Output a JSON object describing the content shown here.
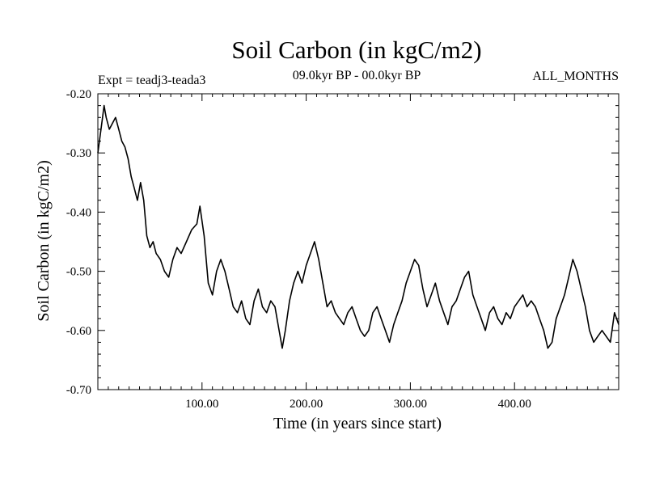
{
  "chart_data": {
    "type": "line",
    "title": "Soil Carbon (in kgC/m2)",
    "subtitle": "09.0kyr BP - 00.0kyr BP",
    "expt_label": "Expt = teadj3-teada3",
    "months_label": "ALL_MONTHS",
    "xlabel": "Time (in years since start)",
    "ylabel": "Soil Carbon (in kgC/m2)",
    "xlim": [
      0,
      500
    ],
    "ylim": [
      -0.7,
      -0.2
    ],
    "x_ticks": [
      100,
      200,
      300,
      400
    ],
    "x_tick_labels": [
      "100.00",
      "200.00",
      "300.00",
      "400.00"
    ],
    "y_ticks": [
      -0.2,
      -0.3,
      -0.4,
      -0.5,
      -0.6,
      -0.7
    ],
    "y_tick_labels": [
      "-0.20",
      "-0.30",
      "-0.40",
      "-0.50",
      "-0.60",
      "-0.70"
    ],
    "grid": false,
    "series": [
      {
        "name": "teadj3-teada3",
        "x": [
          0,
          3,
          6,
          8,
          11,
          14,
          17,
          20,
          23,
          26,
          29,
          32,
          35,
          38,
          41,
          44,
          47,
          50,
          53,
          56,
          60,
          64,
          68,
          72,
          76,
          80,
          85,
          90,
          95,
          98,
          102,
          106,
          110,
          114,
          118,
          122,
          126,
          130,
          134,
          138,
          142,
          146,
          150,
          154,
          158,
          162,
          166,
          170,
          174,
          177,
          180,
          184,
          188,
          192,
          196,
          200,
          204,
          208,
          212,
          216,
          220,
          224,
          228,
          232,
          236,
          240,
          244,
          248,
          252,
          256,
          260,
          264,
          268,
          272,
          276,
          280,
          284,
          288,
          292,
          296,
          300,
          304,
          308,
          312,
          316,
          320,
          324,
          328,
          332,
          336,
          340,
          344,
          348,
          352,
          356,
          360,
          364,
          368,
          372,
          376,
          380,
          384,
          388,
          392,
          396,
          400,
          404,
          408,
          412,
          416,
          420,
          424,
          428,
          432,
          436,
          440,
          444,
          448,
          452,
          456,
          460,
          464,
          468,
          472,
          476,
          480,
          484,
          488,
          492,
          496,
          500
        ],
        "values": [
          -0.3,
          -0.26,
          -0.22,
          -0.24,
          -0.26,
          -0.25,
          -0.24,
          -0.26,
          -0.28,
          -0.29,
          -0.31,
          -0.34,
          -0.36,
          -0.38,
          -0.35,
          -0.38,
          -0.44,
          -0.46,
          -0.45,
          -0.47,
          -0.48,
          -0.5,
          -0.51,
          -0.48,
          -0.46,
          -0.47,
          -0.45,
          -0.43,
          -0.42,
          -0.39,
          -0.44,
          -0.52,
          -0.54,
          -0.5,
          -0.48,
          -0.5,
          -0.53,
          -0.56,
          -0.57,
          -0.55,
          -0.58,
          -0.59,
          -0.55,
          -0.53,
          -0.56,
          -0.57,
          -0.55,
          -0.56,
          -0.6,
          -0.63,
          -0.6,
          -0.55,
          -0.52,
          -0.5,
          -0.52,
          -0.49,
          -0.47,
          -0.45,
          -0.48,
          -0.52,
          -0.56,
          -0.55,
          -0.57,
          -0.58,
          -0.59,
          -0.57,
          -0.56,
          -0.58,
          -0.6,
          -0.61,
          -0.6,
          -0.57,
          -0.56,
          -0.58,
          -0.6,
          -0.62,
          -0.59,
          -0.57,
          -0.55,
          -0.52,
          -0.5,
          -0.48,
          -0.49,
          -0.53,
          -0.56,
          -0.54,
          -0.52,
          -0.55,
          -0.57,
          -0.59,
          -0.56,
          -0.55,
          -0.53,
          -0.51,
          -0.5,
          -0.54,
          -0.56,
          -0.58,
          -0.6,
          -0.57,
          -0.56,
          -0.58,
          -0.59,
          -0.57,
          -0.58,
          -0.56,
          -0.55,
          -0.54,
          -0.56,
          -0.55,
          -0.56,
          -0.58,
          -0.6,
          -0.63,
          -0.62,
          -0.58,
          -0.56,
          -0.54,
          -0.51,
          -0.48,
          -0.5,
          -0.53,
          -0.56,
          -0.6,
          -0.62,
          -0.61,
          -0.6,
          -0.61,
          -0.62,
          -0.57,
          -0.59
        ]
      }
    ]
  }
}
